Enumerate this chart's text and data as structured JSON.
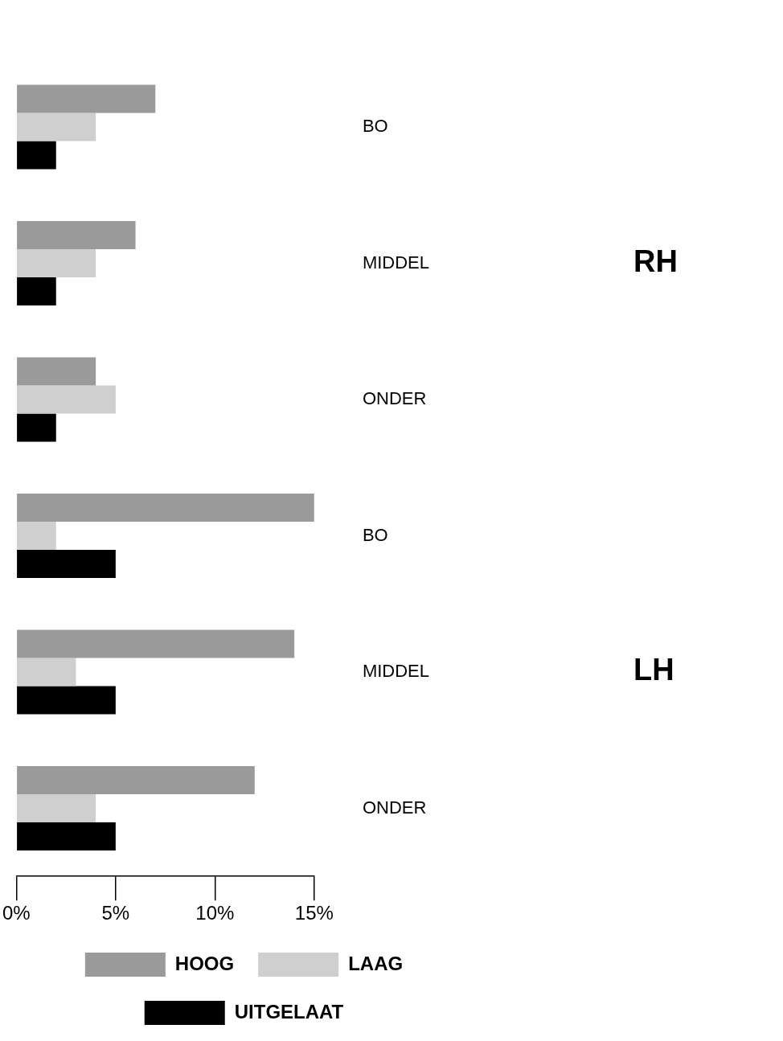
{
  "chart_data": {
    "type": "bar",
    "orientation": "horizontal",
    "categories": [
      "BO",
      "MIDDEL",
      "ONDER",
      "BO",
      "MIDDEL",
      "ONDER"
    ],
    "series": [
      {
        "name": "HOOG",
        "color": "#9a9a9a",
        "values": [
          7,
          6,
          4,
          15,
          14,
          12
        ]
      },
      {
        "name": "LAAG",
        "color": "#cfcfcf",
        "values": [
          4,
          4,
          5,
          2,
          3,
          4
        ]
      },
      {
        "name": "UITGELAAT",
        "color": "#000000",
        "values": [
          2,
          2,
          2,
          5,
          5,
          5
        ]
      }
    ],
    "xlim": [
      0,
      15
    ],
    "xticks": [
      {
        "value": 0,
        "label": "0%"
      },
      {
        "value": 5,
        "label": "5%"
      },
      {
        "value": 10,
        "label": "10%"
      },
      {
        "value": 15,
        "label": "15%"
      }
    ],
    "annotations": [
      "RH",
      "LH"
    ],
    "grid": false,
    "legend": "bottom"
  }
}
